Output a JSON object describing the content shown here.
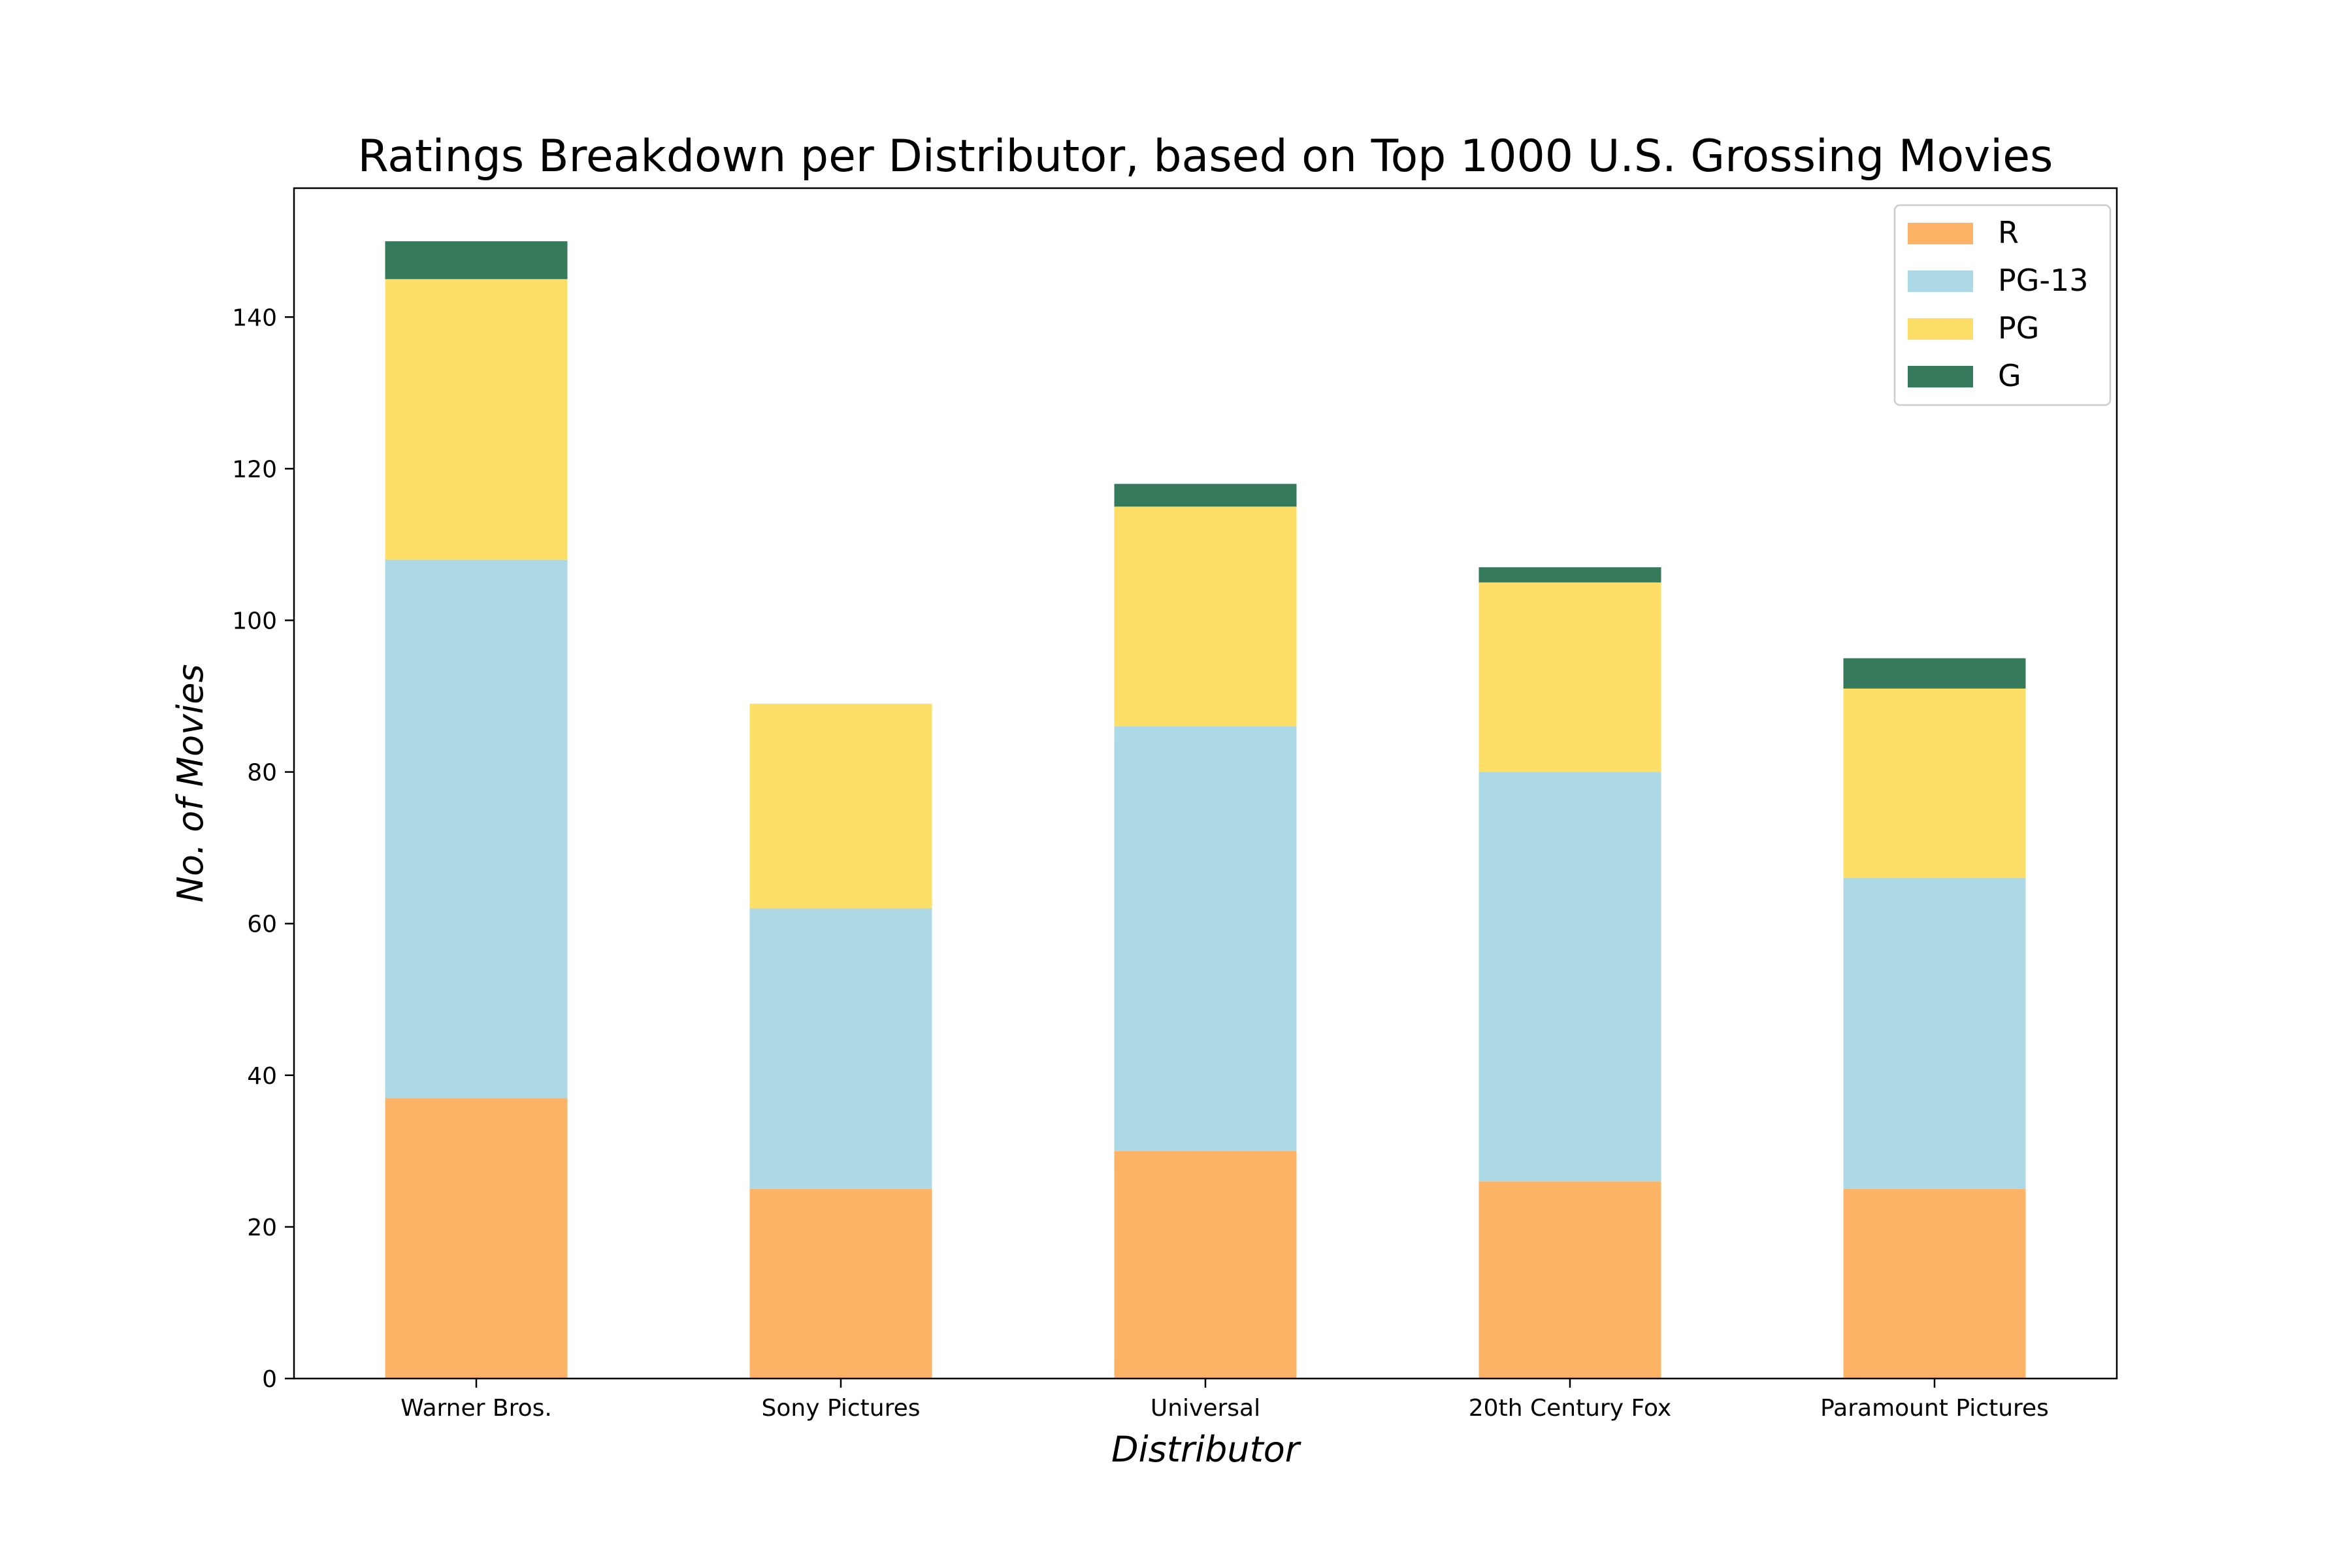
{
  "chart_data": {
    "type": "bar",
    "stacked": true,
    "title": "Ratings Breakdown per Distributor, based on Top 1000 U.S. Grossing Movies",
    "xlabel": "Distributor",
    "ylabel": "No. of Movies",
    "ylim": [
      0,
      157
    ],
    "yticks": [
      0,
      20,
      40,
      60,
      80,
      100,
      120,
      140
    ],
    "grid": false,
    "legend_position": "top-right",
    "categories": [
      "Warner Bros.",
      "Sony Pictures",
      "Universal",
      "20th Century Fox",
      "Paramount Pictures"
    ],
    "series": [
      {
        "name": "R",
        "color": "#fdb366",
        "values": [
          37,
          25,
          30,
          26,
          25
        ]
      },
      {
        "name": "PG-13",
        "color": "#add8e6",
        "values": [
          71,
          37,
          56,
          54,
          41
        ]
      },
      {
        "name": "PG",
        "color": "#fddf67",
        "values": [
          37,
          27,
          29,
          25,
          25
        ]
      },
      {
        "name": "G",
        "color": "#357b5b",
        "values": [
          5,
          0,
          3,
          2,
          4
        ]
      }
    ]
  }
}
